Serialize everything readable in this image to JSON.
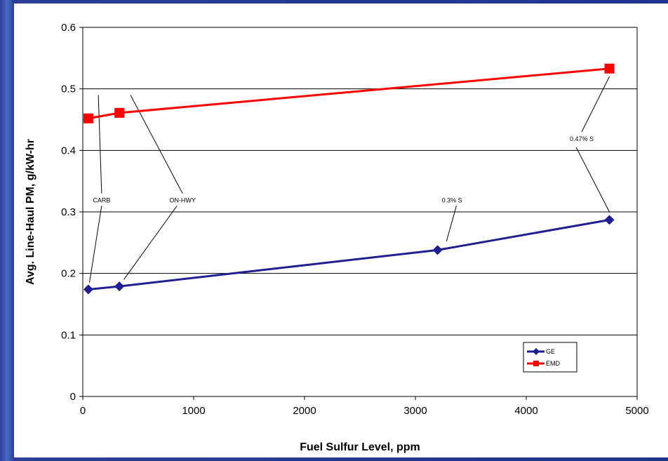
{
  "chart_data": {
    "type": "line",
    "xlabel": "Fuel Sulfur Level, ppm",
    "ylabel": "Avg. Line-Haul PM, g/kW-hr",
    "xlim": [
      0,
      5000
    ],
    "ylim": [
      0,
      0.6
    ],
    "x_ticks": [
      "0",
      "1000",
      "2000",
      "3000",
      "4000",
      "5000"
    ],
    "y_ticks": [
      "0",
      "0.1",
      "0.2",
      "0.3",
      "0.4",
      "0.5",
      "0.6"
    ],
    "grid": "horizontal",
    "legend_position": "bottom-right",
    "series": [
      {
        "name": "GE",
        "color": "#1f1f8f",
        "marker": "diamond",
        "x": [
          50,
          330,
          3200,
          4750
        ],
        "y": [
          0.174,
          0.179,
          0.238,
          0.287
        ]
      },
      {
        "name": "EMD",
        "color": "#ff0000",
        "marker": "square",
        "x": [
          50,
          330,
          4750
        ],
        "y": [
          0.452,
          0.461,
          0.533
        ]
      }
    ],
    "annotations": [
      {
        "text": "CARB"
      },
      {
        "text": "ON-HWY"
      },
      {
        "text": "0.3% S"
      },
      {
        "text": "0.47% S"
      }
    ]
  }
}
